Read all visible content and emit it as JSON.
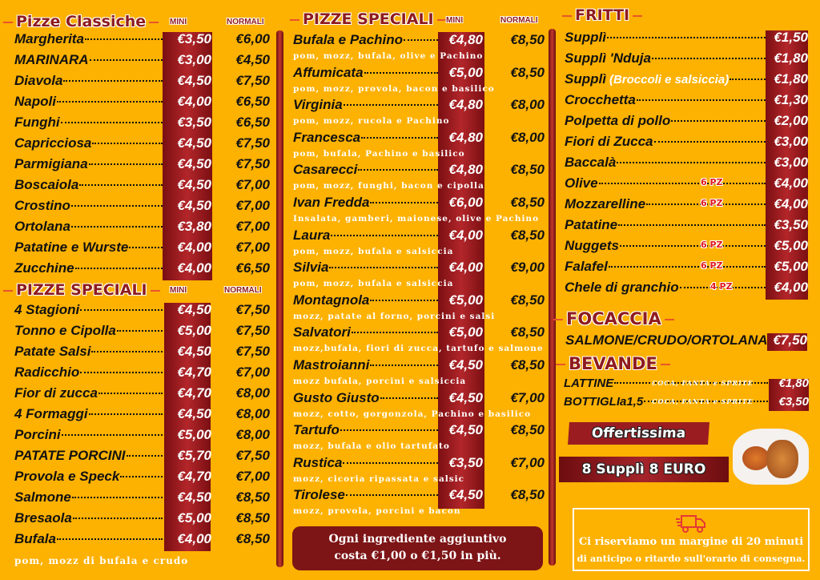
{
  "colors": {
    "background": "#FDB100",
    "accent": "#8e1b1f",
    "price_band": "#9b1c20"
  },
  "classiche": {
    "title": "Pizze Classiche",
    "mini_label": "MINI",
    "normali_label": "NORMALI",
    "items": [
      {
        "name": "Margherita",
        "mini": "€3,50",
        "normali": "€6,00"
      },
      {
        "name": "MARINARA",
        "mini": "€3,00",
        "normali": "€4,50"
      },
      {
        "name": "Diavola",
        "mini": "€4,50",
        "normali": "€7,50"
      },
      {
        "name": "Napoli",
        "mini": "€4,00",
        "normali": "€6,50"
      },
      {
        "name": "Funghi",
        "mini": "€3,50",
        "normali": "€6,50"
      },
      {
        "name": "Capricciosa",
        "mini": "€4,50",
        "normali": "€7,50"
      },
      {
        "name": "Parmigiana",
        "mini": "€4,50",
        "normali": "€7,50"
      },
      {
        "name": "Boscaiola",
        "mini": "€4,50",
        "normali": "€7,00"
      },
      {
        "name": "Crostino",
        "mini": "€4,50",
        "normali": "€7,00"
      },
      {
        "name": "Ortolana",
        "mini": "€3,80",
        "normali": "€7,00"
      },
      {
        "name": "Patatine e Wurste",
        "mini": "€4,00",
        "normali": "€7,00"
      },
      {
        "name": "Zucchine",
        "mini": "€4,00",
        "normali": "€6,50"
      }
    ]
  },
  "speciali_1": {
    "title": "PIZZE SPECIALI",
    "mini_label": "MINI",
    "normali_label": "NORMALI",
    "items": [
      {
        "name": "4 Stagioni",
        "mini": "€4,50",
        "normali": "€7,50"
      },
      {
        "name": "Tonno e Cipolla",
        "mini": "€5,00",
        "normali": "€7,50"
      },
      {
        "name": "Patate Salsi",
        "mini": "€4,50",
        "normali": "€7,50"
      },
      {
        "name": "Radicchio",
        "mini": "€4,70",
        "normali": "€7,00"
      },
      {
        "name": "Fior di zucca",
        "mini": "€4,70",
        "normali": "€8,00"
      },
      {
        "name": "4 Formaggi",
        "mini": "€4,50",
        "normali": "€8,00"
      },
      {
        "name": "Porcini",
        "mini": "€5,00",
        "normali": "€8,00"
      },
      {
        "name": "PATATE PORCINI",
        "mini": "€5,70",
        "normali": "€7,50"
      },
      {
        "name": "Provola e Speck",
        "mini": "€4,70",
        "normali": "€7,00"
      },
      {
        "name": "Salmone",
        "mini": "€4,50",
        "normali": "€8,50"
      },
      {
        "name": "Bresaola",
        "mini": "€5,00",
        "normali": "€8,50"
      },
      {
        "name": "Bufala",
        "mini": "€4,00",
        "normali": "€8,50"
      }
    ],
    "footer_desc": "pom, mozz di bufala e crudo"
  },
  "speciali_2": {
    "title": "PIZZE SPECIALI",
    "mini_label": "MINI",
    "normali_label": "NORMALI",
    "items": [
      {
        "name": "Bufala e Pachino",
        "mini": "€4,80",
        "normali": "€8,50",
        "desc": "pom, mozz, bufala, olive e Pachino"
      },
      {
        "name": "Affumicata",
        "mini": "€5,00",
        "normali": "€8,50",
        "desc": "pom, mozz, provola, bacon e basilico"
      },
      {
        "name": "Virginia",
        "mini": "€4,80",
        "normali": "€8,00",
        "desc": "pom, mozz, rucola e Pachino"
      },
      {
        "name": "Francesca",
        "mini": "€4,80",
        "normali": "€8,00",
        "desc": "pom, bufala, Pachino e basilico"
      },
      {
        "name": "Casarecci",
        "mini": "€4,80",
        "normali": "€8,50",
        "desc": "pom, mozz, funghi, bacon e cipolla"
      },
      {
        "name": "Ivan Fredda",
        "mini": "€6,00",
        "normali": "€8,50",
        "desc": "Insalata, gamberi, maionese, olive e  Pachino"
      },
      {
        "name": "Laura",
        "mini": "€4,00",
        "normali": "€8,50",
        "desc": "pom, mozz, bufala e salsiccia"
      },
      {
        "name": "Silvia",
        "mini": "€4,00",
        "normali": "€9,00",
        "desc": "pom, mozz, bufala e salsiccia"
      },
      {
        "name": "Montagnola",
        "mini": "€5,00",
        "normali": "€8,50",
        "desc": "mozz, patate al forno, porcini e salsi"
      },
      {
        "name": "Salvatori",
        "mini": "€5,00",
        "normali": "€8,50",
        "desc": "mozz,bufala, fiori di zucca, tartufo e salmone"
      },
      {
        "name": "Mastroianni",
        "mini": "€4,50",
        "normali": "€8,50",
        "desc": "mozz bufala, porcini e salsiccia"
      },
      {
        "name": "Gusto Giusto",
        "mini": "€4,50",
        "normali": "€7,00",
        "desc": "mozz, cotto, gorgonzola, Pachino e basilico"
      },
      {
        "name": "Tartufo",
        "mini": "€4,50",
        "normali": "€8,50",
        "desc": "mozz, bufala e olio tartufato"
      },
      {
        "name": "Rustica",
        "mini": "€3,50",
        "normali": "€7,00",
        "desc": "mozz, cicoria ripassata e salsic"
      },
      {
        "name": "Tirolese",
        "mini": "€4,50",
        "normali": "€8,50",
        "desc": "mozz, provola, porcini e bacon"
      }
    ],
    "note_line1": "Ogni ingrediente aggiuntivo",
    "note_line2": "costa €1,00 o €1,50 in più."
  },
  "fritti": {
    "title": "FRITTI",
    "items": [
      {
        "name": "Supplì",
        "price": "€1,50"
      },
      {
        "name": "Supplì 'Nduja",
        "price": "€1,80"
      },
      {
        "name": "Supplì",
        "extra": "(Broccoli e salsiccia)",
        "price": "€1,80"
      },
      {
        "name": "Crocchetta",
        "price": "€1,30"
      },
      {
        "name": "Polpetta di pollo",
        "price": "€2,00"
      },
      {
        "name": "Fiori di Zucca",
        "price": "€3,00"
      },
      {
        "name": "Baccalà",
        "price": "€3,00"
      },
      {
        "name": "Olive",
        "qty": "6 PZ",
        "price": "€4,00"
      },
      {
        "name": "Mozzarelline",
        "qty": "6 PZ",
        "price": "€4,00"
      },
      {
        "name": "Patatine",
        "price": "€3,50"
      },
      {
        "name": "Nuggets",
        "qty": "6 PZ",
        "price": "€5,00"
      },
      {
        "name": "Falafel",
        "qty": "6 PZ",
        "price": "€5,00"
      },
      {
        "name": "Chele di granchio",
        "qty": "4 PZ",
        "price": "€4,00"
      }
    ]
  },
  "focaccia": {
    "title": "FOCACCIA",
    "items": [
      {
        "name": "SALMONE/CRUDO/ORTOLANA",
        "price": "€7,50"
      }
    ]
  },
  "bevande": {
    "title": "BEVANDE",
    "items": [
      {
        "name": "LATTINE",
        "desc": "COCA, FANTA e SPRITE",
        "price": "€1,80"
      },
      {
        "name": "BOTTIGLIa1,5",
        "desc": "COCA, FANTA e SPRITE",
        "price": "€3,50"
      }
    ]
  },
  "promo": {
    "title": "Offertissima",
    "offer": "8 Supplì 8 EURO"
  },
  "delivery": {
    "icon": "delivery-truck-icon",
    "line1": "Ci riserviamo un margine di 20 minuti",
    "line2": "di anticipo o ritardo sull'orario di consegna."
  }
}
